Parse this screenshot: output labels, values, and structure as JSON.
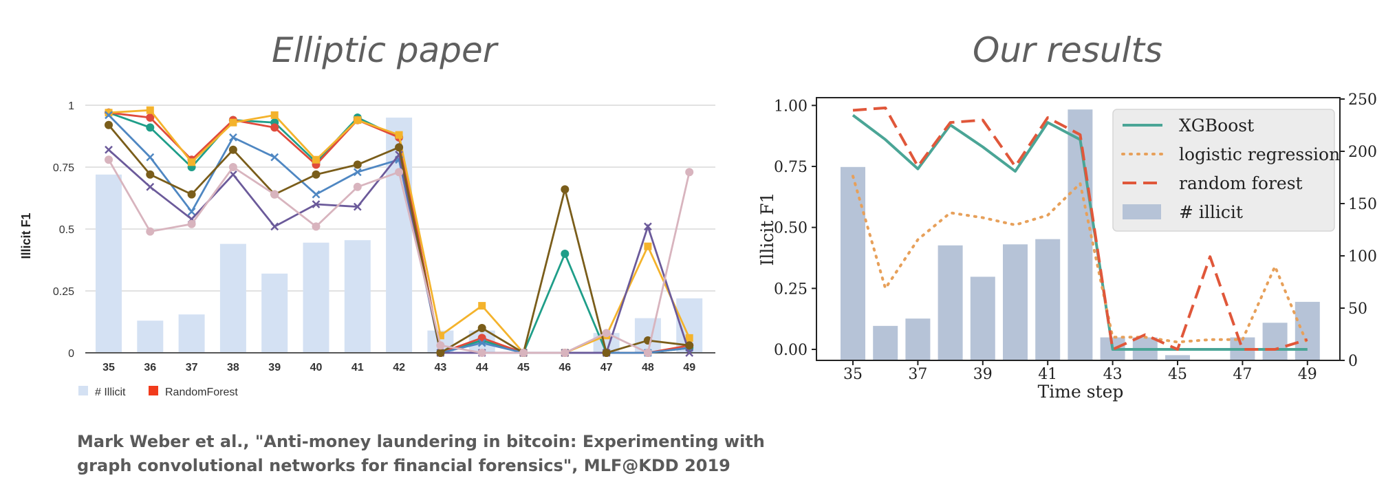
{
  "headings": {
    "left": "Elliptic paper",
    "right": "Our results"
  },
  "citation": {
    "line1": "Mark Weber et al., \"Anti-money laundering in bitcoin: Experimenting with",
    "line2": "graph convolutional networks for financial forensics\", MLF@KDD 2019"
  },
  "colors": {
    "bars_left": "#d4e1f3",
    "bars_right": "#b6c3d7",
    "xgboost": "#4aa596",
    "logistic": "#e7a05a",
    "random_forest": "#e0573a"
  },
  "chart_data": [
    {
      "type": "bar",
      "title": "",
      "ylabel": "Illicit F1",
      "xlabel": "",
      "x": [
        35,
        36,
        37,
        38,
        39,
        40,
        41,
        42,
        43,
        44,
        45,
        46,
        47,
        48,
        49
      ],
      "ylim": [
        0,
        1
      ],
      "yticks": [
        "0",
        "0.25",
        "0.5",
        "0.75",
        "1"
      ],
      "grid": true,
      "legend": {
        "position": "bottom-left",
        "entries": [
          "# Illicit",
          "RandomForest"
        ]
      },
      "bars": {
        "name": "# Illicit",
        "values": [
          0.72,
          0.13,
          0.155,
          0.44,
          0.32,
          0.445,
          0.455,
          0.95,
          0.09,
          0.09,
          0.0,
          0.0,
          0.08,
          0.14,
          0.22
        ]
      },
      "series": [
        {
          "color": "#1f9e89",
          "marker": "circle",
          "values": [
            0.97,
            0.91,
            0.75,
            0.94,
            0.93,
            0.77,
            0.95,
            0.87,
            0.0,
            0.05,
            0.0,
            0.4,
            0.0,
            0.0,
            0.02
          ]
        },
        {
          "name": "RandomForest",
          "color": "#e04b3c",
          "marker": "circle",
          "values": [
            0.97,
            0.95,
            0.78,
            0.94,
            0.91,
            0.76,
            0.94,
            0.87,
            0.0,
            0.06,
            0.0,
            0.0,
            0.0,
            0.0,
            0.03
          ]
        },
        {
          "color": "#f4b32c",
          "marker": "square",
          "values": [
            0.97,
            0.98,
            0.77,
            0.93,
            0.96,
            0.78,
            0.94,
            0.88,
            0.07,
            0.19,
            0.0,
            0.0,
            0.07,
            0.43,
            0.06
          ]
        },
        {
          "color": "#4f87c2",
          "marker": "x",
          "values": [
            0.96,
            0.79,
            0.57,
            0.87,
            0.79,
            0.64,
            0.73,
            0.78,
            0.0,
            0.04,
            0.0,
            0.0,
            0.0,
            0.0,
            0.02
          ]
        },
        {
          "color": "#6b5a9a",
          "marker": "x",
          "values": [
            0.82,
            0.67,
            0.54,
            0.72,
            0.51,
            0.6,
            0.59,
            0.8,
            0.0,
            0.0,
            0.0,
            0.0,
            0.0,
            0.51,
            0.0
          ]
        },
        {
          "color": "#7a5d1a",
          "marker": "circle",
          "values": [
            0.92,
            0.72,
            0.64,
            0.82,
            0.64,
            0.72,
            0.76,
            0.83,
            0.0,
            0.1,
            0.0,
            0.66,
            0.0,
            0.05,
            0.03
          ]
        },
        {
          "color": "#d8b4be",
          "marker": "circle",
          "values": [
            0.78,
            0.49,
            0.52,
            0.75,
            0.64,
            0.51,
            0.67,
            0.73,
            0.03,
            0.0,
            0.0,
            0.0,
            0.08,
            0.0,
            0.73
          ]
        }
      ]
    },
    {
      "type": "line",
      "title": "",
      "xlabel": "Time step",
      "ylabel": "Illicit F1",
      "x": [
        35,
        36,
        37,
        38,
        39,
        40,
        41,
        42,
        43,
        44,
        45,
        46,
        47,
        48,
        49
      ],
      "xticks": [
        "35",
        "37",
        "39",
        "41",
        "43",
        "45",
        "47",
        "49"
      ],
      "ylim": [
        -0.04,
        1.02
      ],
      "yticks": [
        "0.00",
        "0.25",
        "0.50",
        "0.75",
        "1.00"
      ],
      "y2lim": [
        0,
        250
      ],
      "y2ticks": [
        "0",
        "50",
        "100",
        "150",
        "200",
        "250"
      ],
      "legend": {
        "position": "top-right",
        "entries": [
          "XGBoost",
          "logistic regression",
          "random forest",
          "# illicit"
        ]
      },
      "bars": {
        "name": "# illicit",
        "values": [
          185,
          33,
          40,
          110,
          80,
          111,
          116,
          240,
          22,
          22,
          5,
          0,
          22,
          36,
          56
        ]
      },
      "series": [
        {
          "name": "XGBoost",
          "color": "#4aa596",
          "style": "solid",
          "values": [
            0.96,
            0.86,
            0.74,
            0.92,
            0.83,
            0.73,
            0.93,
            0.86,
            0.0,
            0.0,
            0.0,
            0.0,
            0.0,
            0.0,
            0.0
          ]
        },
        {
          "name": "logistic regression",
          "color": "#e7a05a",
          "style": "dotted",
          "values": [
            0.71,
            0.25,
            0.45,
            0.56,
            0.54,
            0.51,
            0.55,
            0.68,
            0.05,
            0.05,
            0.03,
            0.04,
            0.04,
            0.34,
            0.02
          ]
        },
        {
          "name": "random forest",
          "color": "#e0573a",
          "style": "dashed",
          "values": [
            0.98,
            0.99,
            0.75,
            0.93,
            0.94,
            0.75,
            0.95,
            0.88,
            0.0,
            0.06,
            0.0,
            0.38,
            0.0,
            0.0,
            0.04
          ]
        }
      ]
    }
  ]
}
